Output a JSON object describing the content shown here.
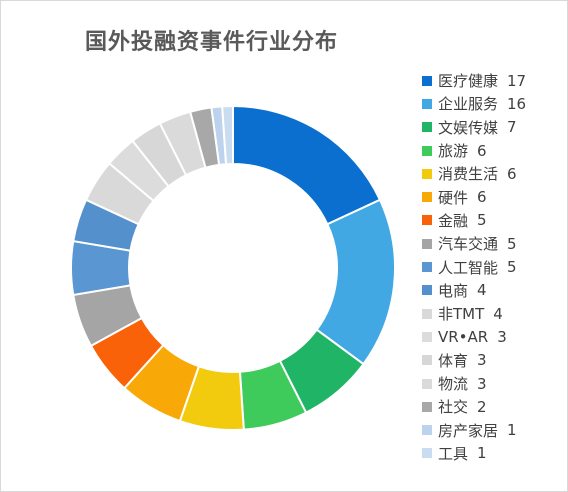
{
  "chart_data": {
    "type": "pie",
    "title": "国外投融资事件行业分布",
    "legend_position": "right",
    "series": [
      {
        "name": "医疗健康",
        "value": 17,
        "color": "#0b6fcf"
      },
      {
        "name": "企业服务",
        "value": 16,
        "color": "#41a8e3"
      },
      {
        "name": "文娱传媒",
        "value": 7,
        "color": "#1fb466"
      },
      {
        "name": "旅游",
        "value": 6,
        "color": "#3fcb5c"
      },
      {
        "name": "消费生活",
        "value": 6,
        "color": "#f2cb0f"
      },
      {
        "name": "硬件",
        "value": 6,
        "color": "#f8a908"
      },
      {
        "name": "金融",
        "value": 5,
        "color": "#fa6209"
      },
      {
        "name": "汽车交通",
        "value": 5,
        "color": "#a5a5a5"
      },
      {
        "name": "人工智能",
        "value": 5,
        "color": "#5a96d2"
      },
      {
        "name": "电商",
        "value": 4,
        "color": "#5490cc"
      },
      {
        "name": "非TMT",
        "value": 4,
        "color": "#d9d9d9"
      },
      {
        "name": "VR•AR",
        "value": 3,
        "color": "#dcdcdc"
      },
      {
        "name": "体育",
        "value": 3,
        "color": "#d7d7d7"
      },
      {
        "name": "物流",
        "value": 3,
        "color": "#dadada"
      },
      {
        "name": "社交",
        "value": 2,
        "color": "#a8a8a8"
      },
      {
        "name": "房产家居",
        "value": 1,
        "color": "#bdd2ec"
      },
      {
        "name": "工具",
        "value": 1,
        "color": "#c9dcf0"
      }
    ]
  }
}
